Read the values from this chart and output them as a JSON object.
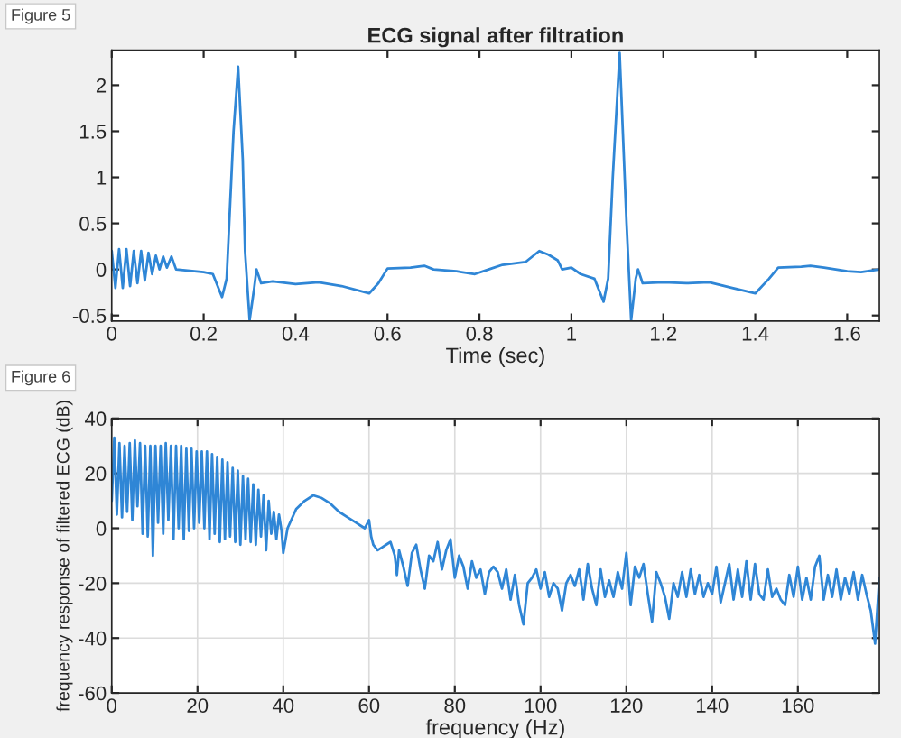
{
  "chart_data": [
    {
      "type": "line",
      "title": "ECG signal after filtration",
      "xlabel": "Time (sec)",
      "annotations": [
        "Figure 5"
      ],
      "grid": false,
      "xlim": [
        0,
        1.67
      ],
      "ylim": [
        -0.56,
        2.38
      ],
      "xticks": [
        0,
        0.2,
        0.4,
        0.6,
        0.8,
        1,
        1.2,
        1.4,
        1.6
      ],
      "yticks": [
        -0.5,
        0,
        0.5,
        1,
        1.5,
        2
      ],
      "series": [
        {
          "color": "#2f86d6",
          "x": [
            0,
            0.008,
            0.016,
            0.024,
            0.032,
            0.04,
            0.048,
            0.056,
            0.064,
            0.072,
            0.08,
            0.088,
            0.096,
            0.104,
            0.112,
            0.12,
            0.13,
            0.14,
            0.16,
            0.2,
            0.22,
            0.24,
            0.25,
            0.265,
            0.275,
            0.285,
            0.29,
            0.3,
            0.31,
            0.315,
            0.325,
            0.35,
            0.4,
            0.45,
            0.5,
            0.56,
            0.58,
            0.6,
            0.65,
            0.68,
            0.7,
            0.75,
            0.79,
            0.82,
            0.85,
            0.9,
            0.93,
            0.95,
            0.97,
            0.98,
            1.0,
            1.02,
            1.05,
            1.07,
            1.08,
            1.09,
            1.105,
            1.12,
            1.13,
            1.14,
            1.145,
            1.155,
            1.2,
            1.25,
            1.3,
            1.35,
            1.4,
            1.43,
            1.45,
            1.5,
            1.52,
            1.55,
            1.6,
            1.63,
            1.67
          ],
          "values": [
            0.2,
            -0.2,
            0.22,
            -0.2,
            0.22,
            -0.18,
            0.2,
            -0.15,
            0.2,
            -0.12,
            0.18,
            -0.05,
            0.15,
            0,
            0.14,
            0.02,
            0.14,
            0,
            -0.01,
            -0.03,
            -0.05,
            -0.3,
            -0.1,
            1.5,
            2.2,
            1.2,
            0.2,
            -0.55,
            -0.2,
            0,
            -0.15,
            -0.13,
            -0.16,
            -0.14,
            -0.18,
            -0.26,
            -0.15,
            0.01,
            0.02,
            0.04,
            0,
            -0.02,
            -0.05,
            0,
            0.05,
            0.08,
            0.2,
            0.16,
            0.1,
            0,
            0.02,
            -0.05,
            -0.1,
            -0.35,
            -0.1,
            1.0,
            2.35,
            0.5,
            -0.55,
            -0.1,
            0,
            -0.15,
            -0.14,
            -0.15,
            -0.14,
            -0.2,
            -0.26,
            -0.1,
            0.02,
            0.03,
            0.04,
            0.02,
            -0.02,
            -0.03,
            0
          ]
        }
      ]
    },
    {
      "type": "line",
      "xlabel": "frequency (Hz)",
      "ylabel": "frequency response of filtered ECG (dB)",
      "annotations": [
        "Figure 6"
      ],
      "grid": true,
      "xlim": [
        0,
        179
      ],
      "ylim": [
        -60,
        40
      ],
      "xticks": [
        0,
        20,
        40,
        60,
        80,
        100,
        120,
        140,
        160
      ],
      "yticks": [
        -60,
        -40,
        -20,
        0,
        20,
        40
      ],
      "series": [
        {
          "color": "#2f86d6",
          "x": [
            0,
            0.6,
            1.2,
            1.8,
            2.4,
            3,
            3.6,
            4.2,
            4.8,
            5.4,
            6,
            6.6,
            7.2,
            7.8,
            8.4,
            9,
            9.6,
            10.2,
            10.8,
            11.4,
            12,
            12.6,
            13.2,
            13.8,
            14.4,
            15,
            15.6,
            16.2,
            16.8,
            17.4,
            18,
            18.6,
            19.2,
            19.8,
            20.4,
            21,
            21.6,
            22.2,
            22.8,
            23.4,
            24,
            24.6,
            25.2,
            25.8,
            26.4,
            27,
            27.6,
            28.2,
            28.8,
            29.4,
            30,
            30.6,
            31.2,
            31.8,
            32.4,
            33,
            33.6,
            34.2,
            34.8,
            35.4,
            36,
            36.6,
            37.2,
            37.8,
            38.4,
            39,
            39.6,
            40,
            41,
            43,
            45,
            47,
            49,
            51,
            53,
            55,
            57,
            58,
            59,
            60,
            60.5,
            61,
            62,
            63,
            64,
            65,
            66,
            66.5,
            67,
            68,
            69,
            70,
            71,
            72,
            73,
            74,
            75,
            76,
            77,
            78,
            79,
            80,
            81,
            82,
            83,
            84,
            85,
            86,
            87,
            88,
            89,
            90,
            91,
            92,
            93,
            94,
            95,
            96,
            97,
            98,
            99,
            100,
            101,
            102,
            103,
            104,
            105,
            106,
            107,
            108,
            109,
            110,
            111,
            112,
            113,
            114,
            115,
            116,
            117,
            118,
            119,
            120,
            121,
            122,
            123,
            124,
            125,
            126,
            127,
            128,
            129,
            130,
            131,
            132,
            133,
            134,
            135,
            136,
            137,
            138,
            139,
            140,
            141,
            142,
            143,
            144,
            145,
            146,
            147,
            148,
            149,
            150,
            151,
            152,
            153,
            154,
            155,
            156,
            157,
            158,
            159,
            160,
            161,
            162,
            163,
            164,
            165,
            166,
            167,
            168,
            169,
            170,
            171,
            172,
            173,
            174,
            175,
            176,
            177,
            178,
            179
          ],
          "values": [
            10,
            33,
            5,
            31,
            4,
            30,
            6,
            31,
            3,
            32,
            8,
            31,
            -2,
            30,
            -3,
            30,
            -10,
            30,
            2,
            30,
            -2,
            31,
            3,
            30,
            -4,
            30,
            0,
            30,
            -4,
            29,
            -1,
            29,
            0,
            28,
            2,
            28,
            0,
            28,
            -4,
            27,
            -2,
            26,
            -5,
            25,
            -4,
            24,
            -3,
            22,
            -5,
            21,
            -6,
            19,
            -4,
            18,
            -5,
            16,
            -6,
            14,
            -3,
            12,
            -8,
            10,
            -2,
            6,
            -4,
            5,
            -1,
            -9,
            0,
            7,
            10,
            12,
            11,
            9,
            6,
            4,
            2,
            1,
            0,
            3,
            -3,
            -6,
            -8,
            -7,
            -6,
            -5,
            -10,
            -17,
            -8,
            -14,
            -21,
            -9,
            -6,
            -15,
            -22,
            -10,
            -12,
            -5,
            -15,
            -8,
            -4,
            -18,
            -10,
            -14,
            -22,
            -12,
            -18,
            -15,
            -24,
            -16,
            -14,
            -16,
            -22,
            -15,
            -26,
            -17,
            -28,
            -35,
            -20,
            -18,
            -15,
            -22,
            -16,
            -25,
            -20,
            -22,
            -30,
            -20,
            -17,
            -21,
            -15,
            -26,
            -13,
            -22,
            -28,
            -15,
            -25,
            -19,
            -25,
            -16,
            -22,
            -9,
            -28,
            -14,
            -18,
            -13,
            -24,
            -34,
            -16,
            -20,
            -25,
            -33,
            -20,
            -25,
            -16,
            -25,
            -15,
            -24,
            -17,
            -25,
            -20,
            -24,
            -14,
            -27,
            -20,
            -13,
            -26,
            -15,
            -25,
            -12,
            -26,
            -13,
            -24,
            -26,
            -15,
            -25,
            -22,
            -26,
            -28,
            -17,
            -25,
            -14,
            -26,
            -18,
            -26,
            -14,
            -10,
            -26,
            -17,
            -25,
            -15,
            -26,
            -18,
            -24,
            -16,
            -26,
            -17,
            -24,
            -30,
            -42,
            -18
          ]
        }
      ]
    }
  ]
}
